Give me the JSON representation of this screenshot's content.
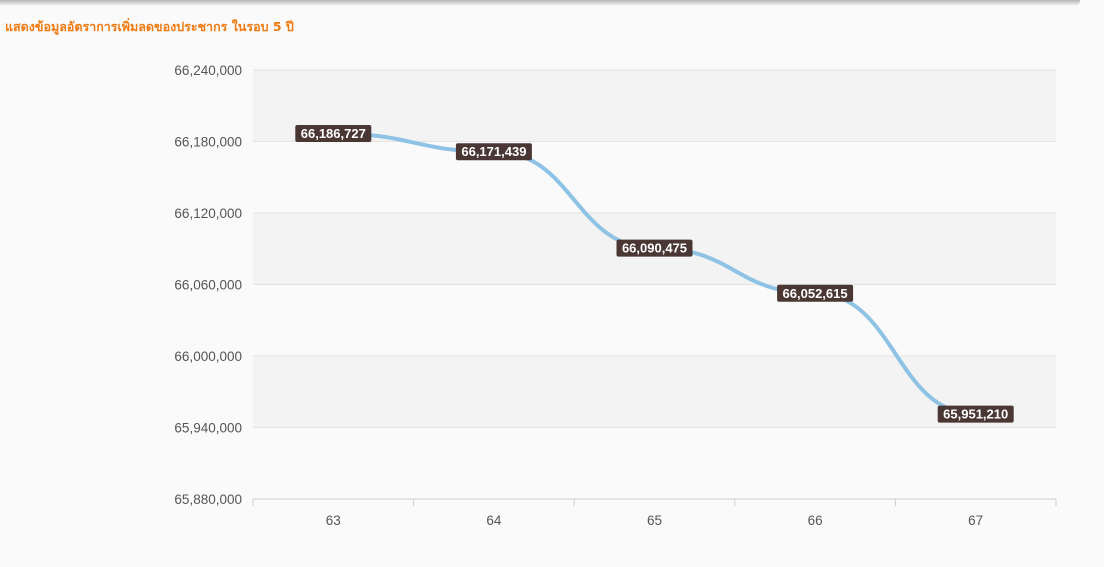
{
  "title": "แสดงข้อมูลอัตราการเพิ่มลดของประชากร ในรอบ 5 ปี",
  "colors": {
    "title": "#f07a12",
    "line": "#8fc3e6",
    "label_bg": "#4a3733",
    "band": "#f3f3f3",
    "grid": "#e3e3e3"
  },
  "chart_data": {
    "type": "line",
    "categories": [
      "63",
      "64",
      "65",
      "66",
      "67"
    ],
    "series": [
      {
        "values": [
          66186727,
          66171439,
          66090475,
          66052615,
          65951210
        ]
      }
    ],
    "data_labels": [
      "66,186,727",
      "66,171,439",
      "66,090,475",
      "66,052,615",
      "65,951,210"
    ],
    "y_ticks": [
      65880000,
      65940000,
      66000000,
      66060000,
      66120000,
      66180000,
      66240000
    ],
    "y_tick_labels": [
      "65,880,000",
      "65,940,000",
      "66,000,000",
      "66,060,000",
      "66,120,000",
      "66,180,000",
      "66,240,000"
    ],
    "ylim": [
      65880000,
      66240000
    ],
    "xlabel": "",
    "ylabel": "",
    "grid": true,
    "legend": "none"
  }
}
